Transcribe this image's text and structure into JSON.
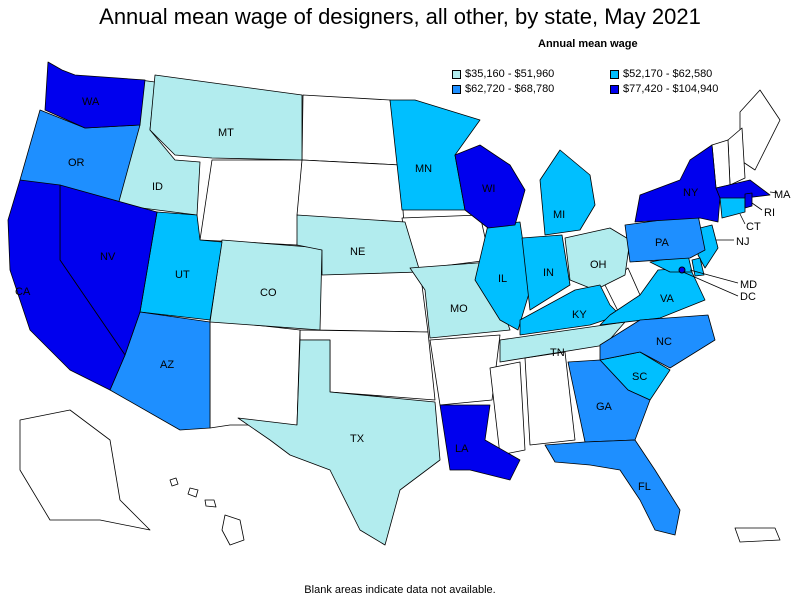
{
  "title": "Annual mean wage of designers, all other, by state, May 2021",
  "legend": {
    "title": "Annual mean wage",
    "items": [
      {
        "label": "$35,160 - $51,960",
        "color": "#b2ecee"
      },
      {
        "label": "$52,170 - $62,580",
        "color": "#00bfff"
      },
      {
        "label": "$62,720 - $68,780",
        "color": "#1e8fff"
      },
      {
        "label": "$77,420 - $104,940",
        "color": "#0000ee"
      }
    ]
  },
  "footnote": "Blank areas indicate data not available.",
  "states": {
    "WA": {
      "label": "WA",
      "tier": 3
    },
    "OR": {
      "label": "OR",
      "tier": 2
    },
    "CA": {
      "label": "CA",
      "tier": 3
    },
    "NV": {
      "label": "NV",
      "tier": 3
    },
    "ID": {
      "label": "ID",
      "tier": 0
    },
    "MT": {
      "label": "MT",
      "tier": 0
    },
    "UT": {
      "label": "UT",
      "tier": 1
    },
    "AZ": {
      "label": "AZ",
      "tier": 2
    },
    "CO": {
      "label": "CO",
      "tier": 0
    },
    "NE": {
      "label": "NE",
      "tier": 0
    },
    "TX": {
      "label": "TX",
      "tier": 0
    },
    "MN": {
      "label": "MN",
      "tier": 1
    },
    "WI": {
      "label": "WI",
      "tier": 3
    },
    "IL": {
      "label": "IL",
      "tier": 1
    },
    "MI": {
      "label": "MI",
      "tier": 1
    },
    "IN": {
      "label": "IN",
      "tier": 1
    },
    "OH": {
      "label": "OH",
      "tier": 0
    },
    "MO": {
      "label": "MO",
      "tier": 0
    },
    "KY": {
      "label": "KY",
      "tier": 1
    },
    "TN": {
      "label": "TN",
      "tier": 0
    },
    "LA": {
      "label": "LA",
      "tier": 3
    },
    "GA": {
      "label": "GA",
      "tier": 2
    },
    "FL": {
      "label": "FL",
      "tier": 2
    },
    "SC": {
      "label": "SC",
      "tier": 1
    },
    "NC": {
      "label": "NC",
      "tier": 2
    },
    "VA": {
      "label": "VA",
      "tier": 1
    },
    "PA": {
      "label": "PA",
      "tier": 2
    },
    "NY": {
      "label": "NY",
      "tier": 3
    },
    "NJ": {
      "label": "NJ",
      "tier": 1
    },
    "MD": {
      "label": "MD",
      "tier": 1
    },
    "DC": {
      "label": "DC",
      "tier": 3
    },
    "CT": {
      "label": "CT",
      "tier": 1
    },
    "RI": {
      "label": "RI",
      "tier": 3
    },
    "MA": {
      "label": "MA",
      "tier": 3
    },
    "DE": {
      "tier": 1
    }
  }
}
